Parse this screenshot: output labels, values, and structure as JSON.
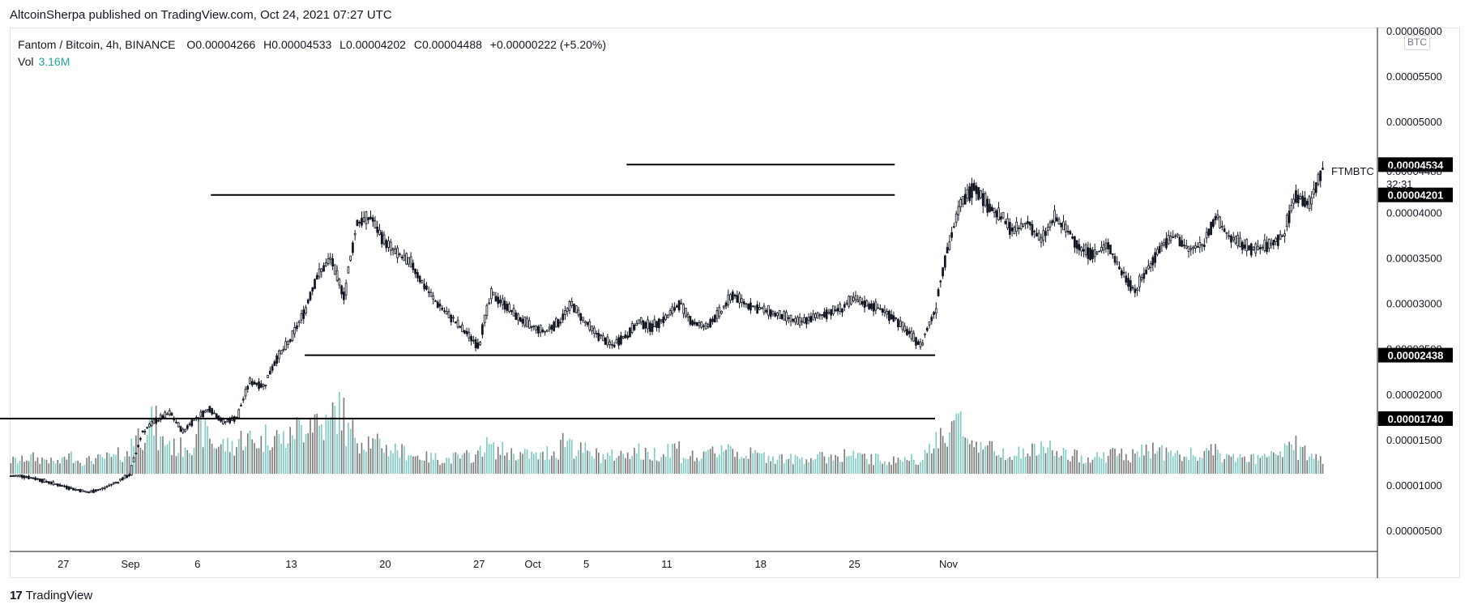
{
  "header": {
    "published": "AltcoinSherpa published on TradingView.com, Oct 24, 2021 07:27 UTC"
  },
  "legend": {
    "symbol": "Fantom / Bitcoin, 4h, BINANCE",
    "open_label": "O",
    "open": "0.00004266",
    "high_label": "H",
    "high": "0.00004533",
    "low_label": "L",
    "low": "0.00004202",
    "close_label": "C",
    "close": "0.00004488",
    "change": "+0.00000222 (+5.20%)",
    "vol_label": "Vol",
    "vol_value": "3.16M"
  },
  "currency_badge": "BTC",
  "symbol_label": "FTMBTC",
  "last_price": "0.00004488",
  "countdown": "32:31",
  "footer": {
    "logo_mark": "17",
    "logo_text": "TradingView"
  },
  "colors": {
    "up": "#ffffff",
    "down": "#131722",
    "candle_outline": "#131722",
    "vol_up": "#80cbc4",
    "vol_down": "#7c7c7c",
    "level_line": "#000000",
    "accent": "#26a69a"
  },
  "chart_data": {
    "type": "candlestick",
    "timeframe": "4h",
    "x_start": "2021-08-23",
    "x_tick_labels": [
      "27",
      "Sep",
      "6",
      "13",
      "20",
      "27",
      "Oct",
      "5",
      "11",
      "18",
      "25",
      "Nov"
    ],
    "y_tick_labels": [
      "0.00006000",
      "0.00005500",
      "0.00005000",
      "0.00004000",
      "0.00003500",
      "0.00003000",
      "0.00002500",
      "0.00002000",
      "0.00001500",
      "0.00001000",
      "0.00000500"
    ],
    "ylim": [
      0.0,
      6e-05
    ],
    "price_tags": [
      "0.00004534",
      "0.00004201",
      "0.00002438",
      "0.00001740"
    ],
    "levels": [
      {
        "price": 4.534e-05,
        "from": "2021-10-08",
        "to": "2021-10-28"
      },
      {
        "price": 4.201e-05,
        "from": "2021-09-07",
        "to": "2021-10-28"
      },
      {
        "price": 2.438e-05,
        "from": "2021-09-14",
        "to": "2021-10-31"
      },
      {
        "price": 1.74e-05,
        "from": "2021-08-22",
        "to": "2021-10-31"
      }
    ],
    "closes_daily": [
      1.11e-05,
      1.08e-05,
      1.04e-05,
      1e-05,
      9.6e-06,
      9.3e-06,
      9.7e-06,
      1.04e-05,
      1.12e-05,
      1.6e-05,
      1.72e-05,
      1.8e-05,
      1.6e-05,
      1.75e-05,
      1.85e-05,
      1.7e-05,
      1.75e-05,
      2.15e-05,
      2.1e-05,
      2.4e-05,
      2.6e-05,
      2.9e-05,
      3.3e-05,
      3.5e-05,
      3.1e-05,
      3.9e-05,
      3.95e-05,
      3.7e-05,
      3.55e-05,
      3.45e-05,
      3.2e-05,
      3e-05,
      2.85e-05,
      2.7e-05,
      2.55e-05,
      3.1e-05,
      3e-05,
      2.85e-05,
      2.75e-05,
      2.7e-05,
      2.8e-05,
      3e-05,
      2.8e-05,
      2.65e-05,
      2.55e-05,
      2.65e-05,
      2.8e-05,
      2.75e-05,
      2.85e-05,
      3e-05,
      2.8e-05,
      2.75e-05,
      2.9e-05,
      3.1e-05,
      3e-05,
      2.95e-05,
      2.9e-05,
      2.85e-05,
      2.8e-05,
      2.85e-05,
      2.9e-05,
      2.95e-05,
      3.05e-05,
      3e-05,
      2.95e-05,
      2.85e-05,
      2.7e-05,
      2.55e-05,
      2.9e-05,
      3.6e-05,
      4.1e-05,
      4.3e-05,
      4.1e-05,
      3.95e-05,
      3.8e-05,
      3.9e-05,
      3.7e-05,
      3.95e-05,
      3.8e-05,
      3.6e-05,
      3.55e-05,
      3.65e-05,
      3.35e-05,
      3.15e-05,
      3.4e-05,
      3.65e-05,
      3.75e-05,
      3.6e-05,
      3.65e-05,
      3.95e-05,
      3.75e-05,
      3.65e-05,
      3.6e-05,
      3.65e-05,
      3.75e-05,
      4.2e-05,
      4.1e-05,
      4.49e-05
    ],
    "volume": [
      0.9,
      1.1,
      1.0,
      0.8,
      1.2,
      0.9,
      1.0,
      1.1,
      1.3,
      2.6,
      3.4,
      2.2,
      1.8,
      2.1,
      2.8,
      2.0,
      1.9,
      2.4,
      2.2,
      2.6,
      2.4,
      3.1,
      3.8,
      3.3,
      4.2,
      2.8,
      2.3,
      2.0,
      1.7,
      1.5,
      1.2,
      1.1,
      1.0,
      1.1,
      1.2,
      1.9,
      1.6,
      1.4,
      1.3,
      1.2,
      1.5,
      2.3,
      1.6,
      1.3,
      1.2,
      1.3,
      1.6,
      1.3,
      1.4,
      1.8,
      1.2,
      1.1,
      1.5,
      1.9,
      1.4,
      1.3,
      1.2,
      1.1,
      1.0,
      1.1,
      1.1,
      1.2,
      1.3,
      1.1,
      1.0,
      0.9,
      1.0,
      1.0,
      1.5,
      2.7,
      3.4,
      2.5,
      2.0,
      1.7,
      1.5,
      1.4,
      1.6,
      1.8,
      1.3,
      1.2,
      1.1,
      1.2,
      1.4,
      1.2,
      1.5,
      1.7,
      1.4,
      1.2,
      1.3,
      1.5,
      1.2,
      1.1,
      1.0,
      1.1,
      1.2,
      2.0,
      1.4,
      1.1
    ]
  }
}
